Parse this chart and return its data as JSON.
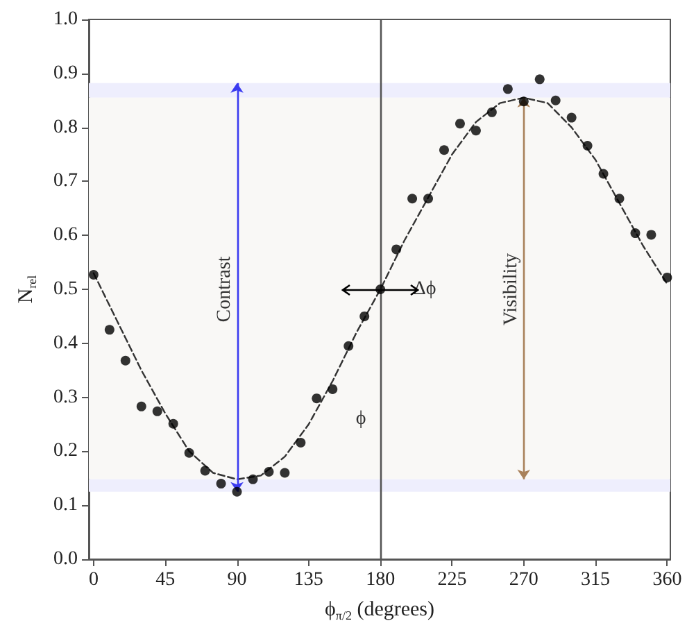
{
  "chart_data": {
    "type": "scatter",
    "xlabel": "ϕ$_{π/2}$ (degrees)",
    "ylabel": "N$_{rel}$",
    "xlim": [
      -3,
      362
    ],
    "xticks": [
      0,
      45,
      90,
      135,
      180,
      225,
      270,
      315,
      360
    ],
    "ylim": [
      0,
      1
    ],
    "yticks": [
      {
        "value": 0,
        "label": "0.0"
      },
      {
        "value": 0.1,
        "label": "0.1"
      },
      {
        "value": 0.2,
        "label": "0.2"
      },
      {
        "value": 0.3,
        "label": "0.3"
      },
      {
        "value": 0.4,
        "label": "0.4"
      },
      {
        "value": 0.5,
        "label": "0.5"
      },
      {
        "value": 0.6,
        "label": "0.6"
      },
      {
        "value": 0.7,
        "label": "0.7"
      },
      {
        "value": 0.8,
        "label": "0.8"
      },
      {
        "value": 0.9,
        "label": "0.9"
      },
      {
        "value": 1,
        "label": "1.0"
      }
    ],
    "grid": false,
    "series": [
      {
        "color": "#000000",
        "marker": "circle",
        "x": [
          0,
          10,
          20,
          30,
          40,
          50,
          60,
          70,
          80,
          90,
          100,
          110,
          120,
          130,
          140,
          150,
          160,
          170,
          180,
          190,
          200,
          210,
          220,
          230,
          240,
          250,
          260,
          270,
          280,
          290,
          300,
          310,
          320,
          330,
          340,
          350,
          360
        ],
        "values": [
          0.527,
          0.425,
          0.368,
          0.283,
          0.274,
          0.251,
          0.197,
          0.164,
          0.14,
          0.125,
          0.148,
          0.162,
          0.16,
          0.216,
          0.298,
          0.315,
          0.395,
          0.45,
          0.5,
          0.574,
          0.668,
          0.668,
          0.758,
          0.807,
          0.794,
          0.828,
          0.871,
          0.848,
          0.889,
          0.85,
          0.818,
          0.766,
          0.714,
          0.668,
          0.604,
          0.601,
          0.522
        ]
      },
      {
        "type": "line",
        "color": "#333333",
        "marker": "none",
        "line_style": "dashed",
        "x": [
          0,
          15,
          30,
          45,
          60,
          75,
          90,
          105,
          120,
          135,
          150,
          165,
          180,
          195,
          210,
          225,
          240,
          255,
          270,
          285,
          300,
          315,
          330,
          345,
          360
        ],
        "values": [
          0.53,
          0.44,
          0.35,
          0.27,
          0.2,
          0.16,
          0.148,
          0.155,
          0.19,
          0.25,
          0.33,
          0.42,
          0.5,
          0.59,
          0.67,
          0.75,
          0.81,
          0.845,
          0.855,
          0.845,
          0.8,
          0.74,
          0.66,
          0.58,
          0.51
        ]
      }
    ],
    "ref_lines": [
      {
        "axis": "x",
        "value": 180,
        "color": "#555555",
        "line_style": "solid"
      }
    ],
    "bands": [
      {
        "axis": "y",
        "from": 0.855,
        "to": 0.882,
        "color": "#eeeefd"
      },
      {
        "axis": "y",
        "from": 0.148,
        "to": 0.855,
        "color": "#f9f8f6"
      },
      {
        "axis": "y",
        "from": 0.125,
        "to": 0.148,
        "color": "#eeeefd"
      }
    ],
    "annotations": [
      "Contrast",
      "Visibility",
      "Δϕ",
      "ϕ"
    ]
  }
}
